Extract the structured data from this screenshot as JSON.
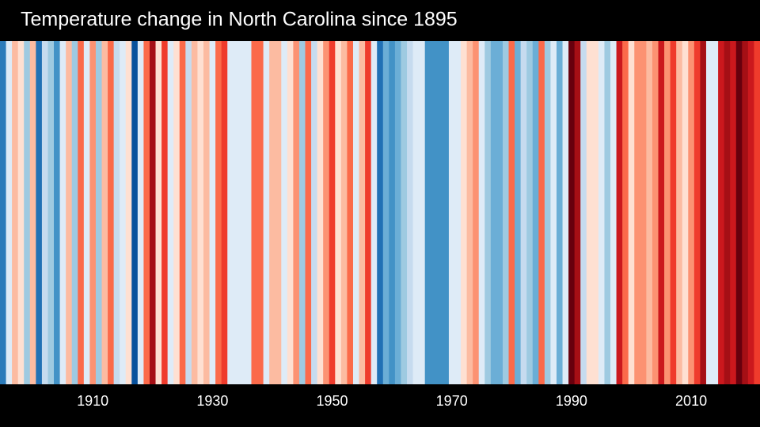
{
  "chart_data": {
    "type": "stripes",
    "title": "Temperature change in North Carolina since 1895",
    "x": [
      1895,
      1896,
      1897,
      1898,
      1899,
      1900,
      1901,
      1902,
      1903,
      1904,
      1905,
      1906,
      1907,
      1908,
      1909,
      1910,
      1911,
      1912,
      1913,
      1914,
      1915,
      1916,
      1917,
      1918,
      1919,
      1920,
      1921,
      1922,
      1923,
      1924,
      1925,
      1926,
      1927,
      1928,
      1929,
      1930,
      1931,
      1932,
      1933,
      1934,
      1935,
      1936,
      1937,
      1938,
      1939,
      1940,
      1941,
      1942,
      1943,
      1944,
      1945,
      1946,
      1947,
      1948,
      1949,
      1950,
      1951,
      1952,
      1953,
      1954,
      1955,
      1956,
      1957,
      1958,
      1959,
      1960,
      1961,
      1962,
      1963,
      1964,
      1965,
      1966,
      1967,
      1968,
      1969,
      1970,
      1971,
      1972,
      1973,
      1974,
      1975,
      1976,
      1977,
      1978,
      1979,
      1980,
      1981,
      1982,
      1983,
      1984,
      1985,
      1986,
      1987,
      1988,
      1989,
      1990,
      1991,
      1992,
      1993,
      1994,
      1995,
      1996,
      1997,
      1998,
      1999,
      2000,
      2001,
      2002,
      2003,
      2004,
      2005,
      2006,
      2007,
      2008,
      2009,
      2010,
      2011,
      2012,
      2013,
      2014,
      2015,
      2016,
      2017,
      2018,
      2019,
      2020,
      2021
    ],
    "colors": [
      "#2b7bba",
      "#deebf7",
      "#fcbba1",
      "#fee0d2",
      "#9ecae1",
      "#fcbba1",
      "#2171b5",
      "#c6dbef",
      "#9ecae1",
      "#4292c6",
      "#deebf7",
      "#fcbba1",
      "#9ecae1",
      "#fb6a4a",
      "#deebf7",
      "#fc9272",
      "#9ecae1",
      "#fcbba1",
      "#fb6a4a",
      "#c6dbef",
      "#deebf7",
      "#fee0d2",
      "#08519c",
      "#deebf7",
      "#fb6a4a",
      "#a50f15",
      "#fee0d2",
      "#ef3b2c",
      "#deebf7",
      "#fee0d2",
      "#fb6a4a",
      "#c6dbef",
      "#fcbba1",
      "#fee0d2",
      "#fcbba1",
      "#deebf7",
      "#fb6a4a",
      "#ef3b2c",
      "#deebf7",
      "#deebf7",
      "#deebf7",
      "#deebf7",
      "#fb6a4a",
      "#fb6a4a",
      "#deebf7",
      "#fcbba1",
      "#fcbba1",
      "#deebf7",
      "#fee0d2",
      "#fc9272",
      "#9ecae1",
      "#fb6a4a",
      "#c6dbef",
      "#fee0d2",
      "#fc9272",
      "#ef3b2c",
      "#fee0d2",
      "#fcbba1",
      "#fb6a4a",
      "#deebf7",
      "#fcbba1",
      "#ef3b2c",
      "#deebf7",
      "#2171b5",
      "#6baed6",
      "#4292c6",
      "#6baed6",
      "#9ecae1",
      "#c6dbef",
      "#deebf7",
      "#deebf7",
      "#4292c6",
      "#4292c6",
      "#4292c6",
      "#4292c6",
      "#deebf7",
      "#deebf7",
      "#fee0d2",
      "#fcbba1",
      "#fc9272",
      "#deebf7",
      "#9ecae1",
      "#6baed6",
      "#6baed6",
      "#9ecae1",
      "#fb6a4a",
      "#6baed6",
      "#c6dbef",
      "#9ecae1",
      "#6baed6",
      "#fb6a4a",
      "#9ecae1",
      "#deebf7",
      "#6baed6",
      "#deebf7",
      "#67000d",
      "#a50f15",
      "#c6dbef",
      "#fee0d2",
      "#fee0d2",
      "#deebf7",
      "#9ecae1",
      "#deebf7",
      "#cb181d",
      "#fb6a4a",
      "#fee0d2",
      "#fc9272",
      "#fc9272",
      "#fcbba1",
      "#fc9272",
      "#cb181d",
      "#fc9272",
      "#ef3b2c",
      "#fcbba1",
      "#fee0d2",
      "#fc9272",
      "#ef3b2c",
      "#a50f15",
      "#deebf7",
      "#deebf7",
      "#cb181d",
      "#a50f15",
      "#cb181d",
      "#67000d",
      "#a50f15",
      "#cb181d",
      "#ef3b2c"
    ],
    "xlim": [
      1894.5,
      2021.5
    ],
    "xticks": [
      1910,
      1930,
      1950,
      1970,
      1990,
      2010
    ]
  }
}
